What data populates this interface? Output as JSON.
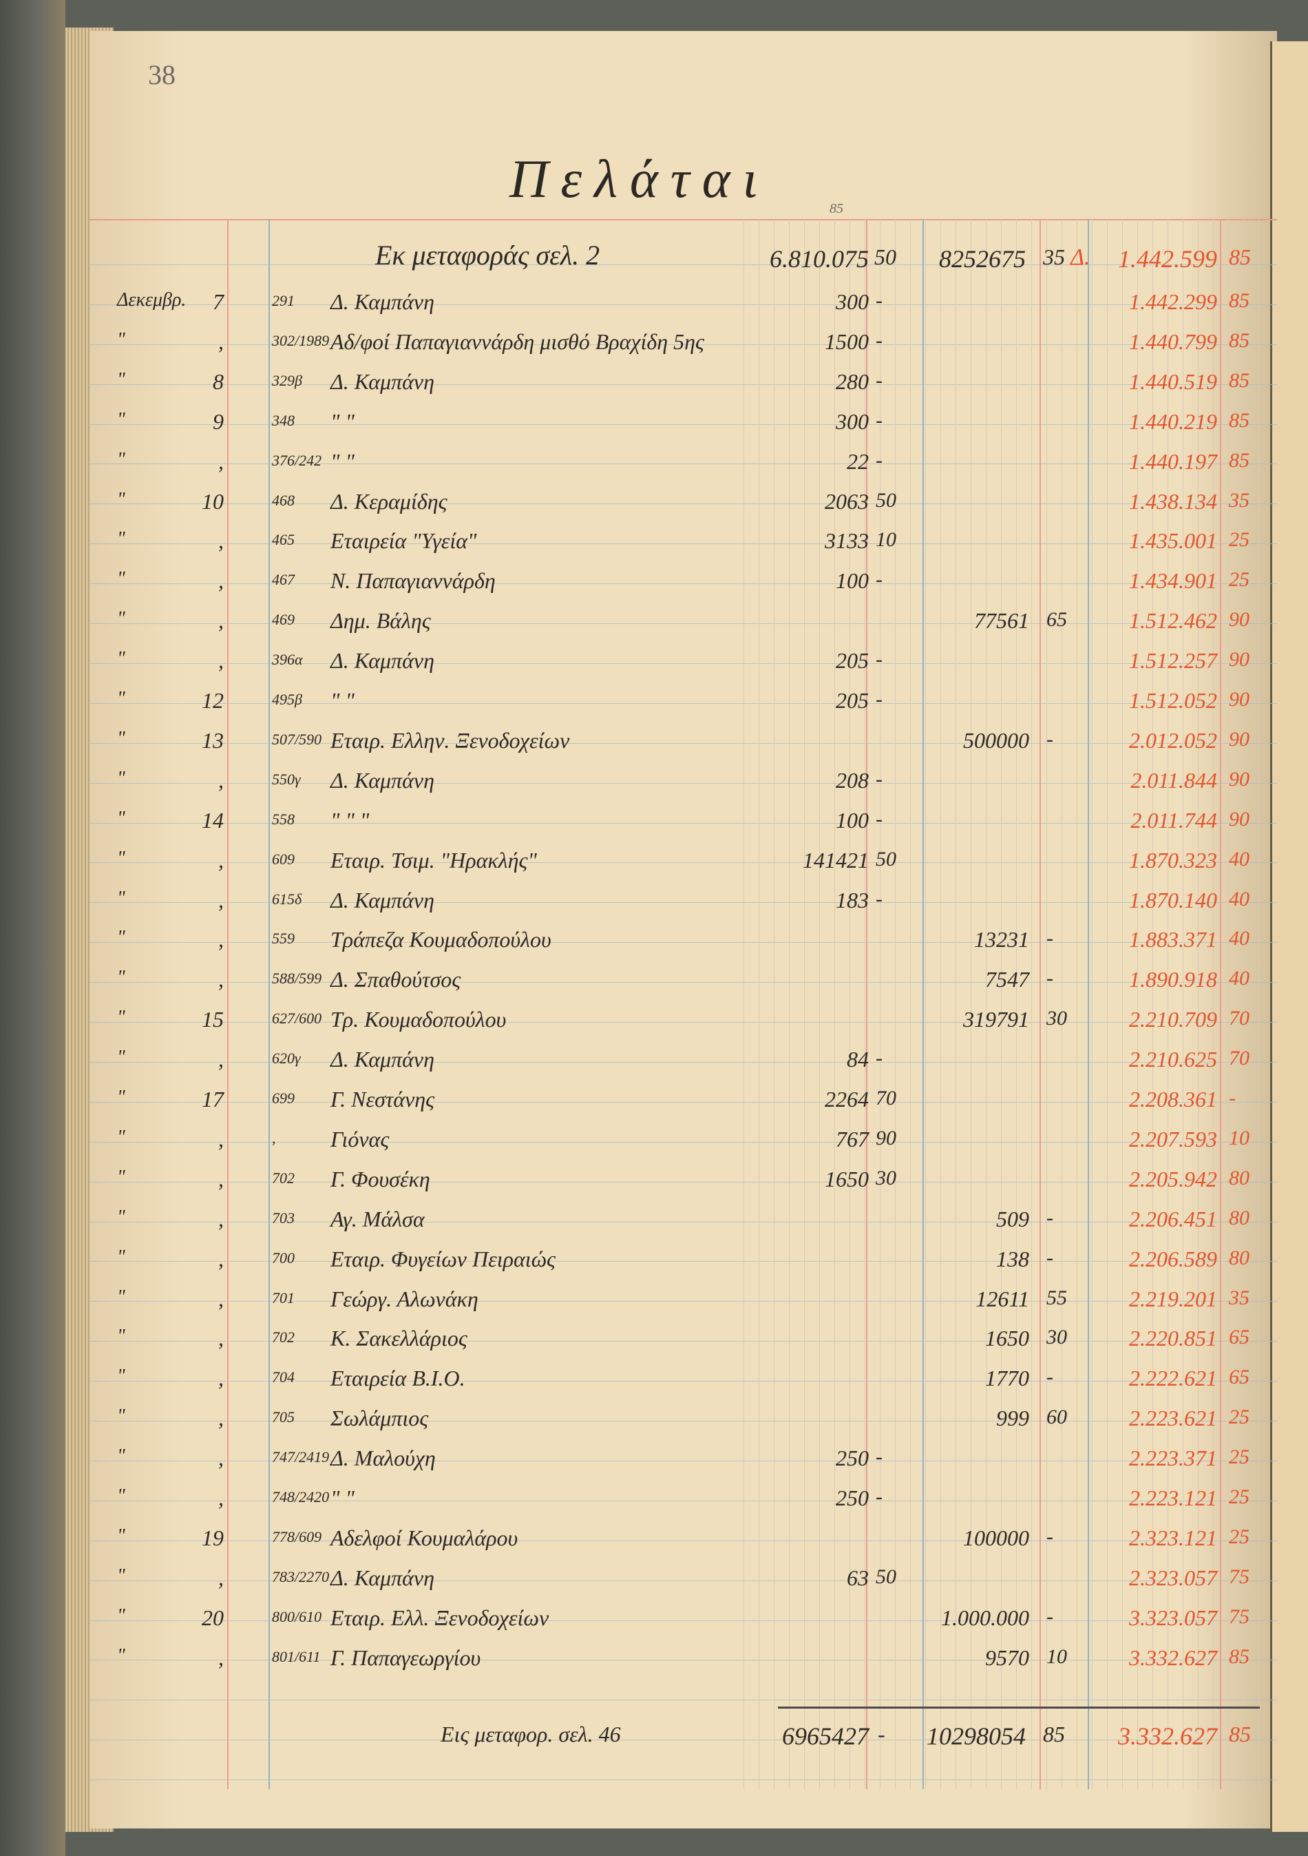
{
  "page_number": "38",
  "title": "Πελάται",
  "header_note": "85",
  "carried_forward": {
    "label": "Εκ μεταφοράς σελ. 2",
    "debit": "6.810.075",
    "debit_cents": "50",
    "credit": "8252675",
    "credit_cents": "35",
    "balance_prefix": "Δ.",
    "balance": "1.442.599",
    "balance_cents": "85"
  },
  "rows": [
    {
      "month": "Δεκεμβρ.",
      "day": "7",
      "ref": "291",
      "desc": "Δ. Καμπάνη",
      "debit": "300",
      "debit_cents": "-",
      "credit": "",
      "credit_cents": "",
      "balance": "1.442.299",
      "balance_cents": "85"
    },
    {
      "month": "\"",
      "day": ",",
      "ref": "302/1989",
      "desc": "Αδ/φοί Παπαγιαννάρδη μισθό Βραχίδη 5ης",
      "debit": "1500",
      "debit_cents": "-",
      "credit": "",
      "credit_cents": "",
      "balance": "1.440.799",
      "balance_cents": "85"
    },
    {
      "month": "\"",
      "day": "8",
      "ref": "329β",
      "desc": "Δ. Καμπάνη",
      "debit": "280",
      "debit_cents": "-",
      "credit": "",
      "credit_cents": "",
      "balance": "1.440.519",
      "balance_cents": "85"
    },
    {
      "month": "\"",
      "day": "9",
      "ref": "348",
      "desc": "\"   \"",
      "debit": "300",
      "debit_cents": "-",
      "credit": "",
      "credit_cents": "",
      "balance": "1.440.219",
      "balance_cents": "85"
    },
    {
      "month": "\"",
      "day": ",",
      "ref": "376/242",
      "desc": "\"   \"",
      "debit": "22",
      "debit_cents": "-",
      "credit": "",
      "credit_cents": "",
      "balance": "1.440.197",
      "balance_cents": "85"
    },
    {
      "month": "\"",
      "day": "10",
      "ref": "468",
      "desc": "Δ. Κεραμίδης",
      "debit": "2063",
      "debit_cents": "50",
      "credit": "",
      "credit_cents": "",
      "balance": "1.438.134",
      "balance_cents": "35"
    },
    {
      "month": "\"",
      "day": ",",
      "ref": "465",
      "desc": "Εταιρεία \"Υγεία\"",
      "debit": "3133",
      "debit_cents": "10",
      "credit": "",
      "credit_cents": "",
      "balance": "1.435.001",
      "balance_cents": "25"
    },
    {
      "month": "\"",
      "day": ",",
      "ref": "467",
      "desc": "Ν. Παπαγιαννάρδη",
      "debit": "100",
      "debit_cents": "-",
      "credit": "",
      "credit_cents": "",
      "balance": "1.434.901",
      "balance_cents": "25"
    },
    {
      "month": "\"",
      "day": ",",
      "ref": "469",
      "desc": "Δημ. Βάλης",
      "debit": "",
      "debit_cents": "",
      "credit": "77561",
      "credit_cents": "65",
      "balance": "1.512.462",
      "balance_cents": "90"
    },
    {
      "month": "\"",
      "day": ",",
      "ref": "396α",
      "desc": "Δ. Καμπάνη",
      "debit": "205",
      "debit_cents": "-",
      "credit": "",
      "credit_cents": "",
      "balance": "1.512.257",
      "balance_cents": "90"
    },
    {
      "month": "\"",
      "day": "12",
      "ref": "495β",
      "desc": "\"   \"",
      "debit": "205",
      "debit_cents": "-",
      "credit": "",
      "credit_cents": "",
      "balance": "1.512.052",
      "balance_cents": "90"
    },
    {
      "month": "\"",
      "day": "13",
      "ref": "507/590",
      "desc": "Εταιρ. Ελλην. Ξενοδοχείων",
      "debit": "",
      "debit_cents": "",
      "credit": "500000",
      "credit_cents": "-",
      "balance": "2.012.052",
      "balance_cents": "90"
    },
    {
      "month": "\"",
      "day": ",",
      "ref": "550γ",
      "desc": "Δ. Καμπάνη",
      "debit": "208",
      "debit_cents": "-",
      "credit": "",
      "credit_cents": "",
      "balance": "2.011.844",
      "balance_cents": "90"
    },
    {
      "month": "\"",
      "day": "14",
      "ref": "558",
      "desc": "\"   \"   \"",
      "debit": "100",
      "debit_cents": "-",
      "credit": "",
      "credit_cents": "",
      "balance": "2.011.744",
      "balance_cents": "90"
    },
    {
      "month": "\"",
      "day": ",",
      "ref": "609",
      "desc": "Εταιρ. Τσιμ. \"Ηρακλής\"",
      "debit": "141421",
      "debit_cents": "50",
      "credit": "",
      "credit_cents": "",
      "balance": "1.870.323",
      "balance_cents": "40"
    },
    {
      "month": "\"",
      "day": ",",
      "ref": "615δ",
      "desc": "Δ. Καμπάνη",
      "debit": "183",
      "debit_cents": "-",
      "credit": "",
      "credit_cents": "",
      "balance": "1.870.140",
      "balance_cents": "40"
    },
    {
      "month": "\"",
      "day": ",",
      "ref": "559",
      "desc": "Τράπεζα Κουμαδοπούλου",
      "debit": "",
      "debit_cents": "",
      "credit": "13231",
      "credit_cents": "-",
      "balance": "1.883.371",
      "balance_cents": "40"
    },
    {
      "month": "\"",
      "day": ",",
      "ref": "588/599",
      "desc": "Δ. Σπαθούτσος",
      "debit": "",
      "debit_cents": "",
      "credit": "7547",
      "credit_cents": "-",
      "balance": "1.890.918",
      "balance_cents": "40"
    },
    {
      "month": "\"",
      "day": "15",
      "ref": "627/600",
      "desc": "Τρ. Κουμαδοπούλου",
      "debit": "",
      "debit_cents": "",
      "credit": "319791",
      "credit_cents": "30",
      "balance": "2.210.709",
      "balance_cents": "70"
    },
    {
      "month": "\"",
      "day": ",",
      "ref": "620γ",
      "desc": "Δ. Καμπάνη",
      "debit": "84",
      "debit_cents": "-",
      "credit": "",
      "credit_cents": "",
      "balance": "2.210.625",
      "balance_cents": "70"
    },
    {
      "month": "\"",
      "day": "17",
      "ref": "699",
      "desc": "Γ. Νεστάνης",
      "debit": "2264",
      "debit_cents": "70",
      "credit": "",
      "credit_cents": "",
      "balance": "2.208.361",
      "balance_cents": "-"
    },
    {
      "month": "\"",
      "day": ",",
      "ref": ",",
      "desc": "Γιόνας",
      "debit": "767",
      "debit_cents": "90",
      "credit": "",
      "credit_cents": "",
      "balance": "2.207.593",
      "balance_cents": "10"
    },
    {
      "month": "\"",
      "day": ",",
      "ref": "702",
      "desc": "Γ. Φουσέκη",
      "debit": "1650",
      "debit_cents": "30",
      "credit": "",
      "credit_cents": "",
      "balance": "2.205.942",
      "balance_cents": "80"
    },
    {
      "month": "\"",
      "day": ",",
      "ref": "703",
      "desc": "Αγ. Μάλσα",
      "debit": "",
      "debit_cents": "",
      "credit": "509",
      "credit_cents": "-",
      "balance": "2.206.451",
      "balance_cents": "80"
    },
    {
      "month": "\"",
      "day": ",",
      "ref": "700",
      "desc": "Εταιρ. Φυγείων Πειραιώς",
      "debit": "",
      "debit_cents": "",
      "credit": "138",
      "credit_cents": "-",
      "balance": "2.206.589",
      "balance_cents": "80"
    },
    {
      "month": "\"",
      "day": ",",
      "ref": "701",
      "desc": "Γεώργ. Αλωνάκη",
      "debit": "",
      "debit_cents": "",
      "credit": "12611",
      "credit_cents": "55",
      "balance": "2.219.201",
      "balance_cents": "35"
    },
    {
      "month": "\"",
      "day": ",",
      "ref": "702",
      "desc": "Κ. Σακελλάριος",
      "debit": "",
      "debit_cents": "",
      "credit": "1650",
      "credit_cents": "30",
      "balance": "2.220.851",
      "balance_cents": "65"
    },
    {
      "month": "\"",
      "day": ",",
      "ref": "704",
      "desc": "Εταιρεία Β.Ι.Ο.",
      "debit": "",
      "debit_cents": "",
      "credit": "1770",
      "credit_cents": "-",
      "balance": "2.222.621",
      "balance_cents": "65"
    },
    {
      "month": "\"",
      "day": ",",
      "ref": "705",
      "desc": "Σωλάμπιος",
      "debit": "",
      "debit_cents": "",
      "credit": "999",
      "credit_cents": "60",
      "balance": "2.223.621",
      "balance_cents": "25"
    },
    {
      "month": "\"",
      "day": ",",
      "ref": "747/2419",
      "desc": "Δ. Μαλούχη",
      "debit": "250",
      "debit_cents": "-",
      "credit": "",
      "credit_cents": "",
      "balance": "2.223.371",
      "balance_cents": "25"
    },
    {
      "month": "\"",
      "day": ",",
      "ref": "748/2420",
      "desc": "\"   \"",
      "debit": "250",
      "debit_cents": "-",
      "credit": "",
      "credit_cents": "",
      "balance": "2.223.121",
      "balance_cents": "25"
    },
    {
      "month": "\"",
      "day": "19",
      "ref": "778/609",
      "desc": "Αδελφοί Κουμαλάρου",
      "debit": "",
      "debit_cents": "",
      "credit": "100000",
      "credit_cents": "-",
      "balance": "2.323.121",
      "balance_cents": "25"
    },
    {
      "month": "\"",
      "day": ",",
      "ref": "783/2270",
      "desc": "Δ. Καμπάνη",
      "debit": "63",
      "debit_cents": "50",
      "credit": "",
      "credit_cents": "",
      "balance": "2.323.057",
      "balance_cents": "75"
    },
    {
      "month": "\"",
      "day": "20",
      "ref": "800/610",
      "desc": "Εταιρ. Ελλ. Ξενοδοχείων",
      "debit": "",
      "debit_cents": "",
      "credit": "1.000.000",
      "credit_cents": "-",
      "balance": "3.323.057",
      "balance_cents": "75"
    },
    {
      "month": "\"",
      "day": ",",
      "ref": "801/611",
      "desc": "Γ. Παπαγεωργίου",
      "debit": "",
      "debit_cents": "",
      "credit": "9570",
      "credit_cents": "10",
      "balance": "3.332.627",
      "balance_cents": "85"
    }
  ],
  "totals": {
    "label": "Εις μεταφορ. σελ. 46",
    "debit": "6965427",
    "debit_cents": "-",
    "credit": "10298054",
    "credit_cents": "85",
    "balance": "3.332.627",
    "balance_cents": "85"
  },
  "colors": {
    "black_ink": "#2f2a25",
    "red_ink": "#e2552f",
    "paper": "#f0dfbd",
    "rule_blue": "#a9bcc8",
    "rule_red": "#e8a090"
  }
}
